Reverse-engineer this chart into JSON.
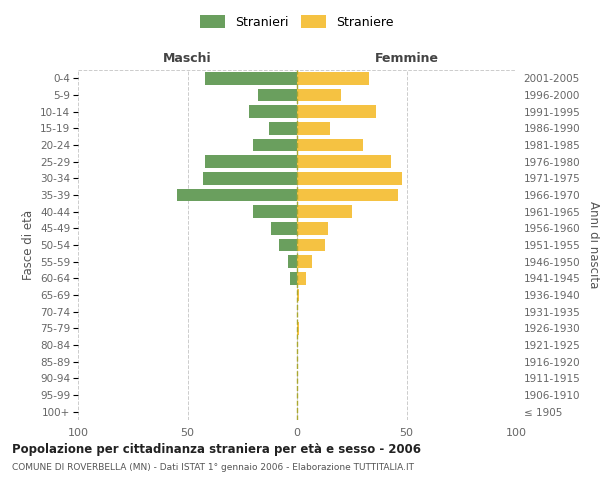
{
  "age_groups": [
    "100+",
    "95-99",
    "90-94",
    "85-89",
    "80-84",
    "75-79",
    "70-74",
    "65-69",
    "60-64",
    "55-59",
    "50-54",
    "45-49",
    "40-44",
    "35-39",
    "30-34",
    "25-29",
    "20-24",
    "15-19",
    "10-14",
    "5-9",
    "0-4"
  ],
  "birth_years": [
    "≤ 1905",
    "1906-1910",
    "1911-1915",
    "1916-1920",
    "1921-1925",
    "1926-1930",
    "1931-1935",
    "1936-1940",
    "1941-1945",
    "1946-1950",
    "1951-1955",
    "1956-1960",
    "1961-1965",
    "1966-1970",
    "1971-1975",
    "1976-1980",
    "1981-1985",
    "1986-1990",
    "1991-1995",
    "1996-2000",
    "2001-2005"
  ],
  "maschi": [
    0,
    0,
    0,
    0,
    0,
    0,
    0,
    0,
    3,
    4,
    8,
    12,
    20,
    55,
    43,
    42,
    20,
    13,
    22,
    18,
    42
  ],
  "femmine": [
    0,
    0,
    0,
    0,
    0,
    1,
    0,
    1,
    4,
    7,
    13,
    14,
    25,
    46,
    48,
    43,
    30,
    15,
    36,
    20,
    33
  ],
  "maschi_color": "#6a9f5e",
  "femmine_color": "#f5c242",
  "background_color": "#ffffff",
  "grid_color": "#cccccc",
  "title": "Popolazione per cittadinanza straniera per età e sesso - 2006",
  "subtitle": "COMUNE DI ROVERBELLA (MN) - Dati ISTAT 1° gennaio 2006 - Elaborazione TUTTITALIA.IT",
  "ylabel_left": "Fasce di età",
  "ylabel_right": "Anni di nascita",
  "xlabel_maschi": "Maschi",
  "xlabel_femmine": "Femmine",
  "legend_stranieri": "Stranieri",
  "legend_straniere": "Straniere",
  "xlim": 100,
  "bar_height": 0.75
}
